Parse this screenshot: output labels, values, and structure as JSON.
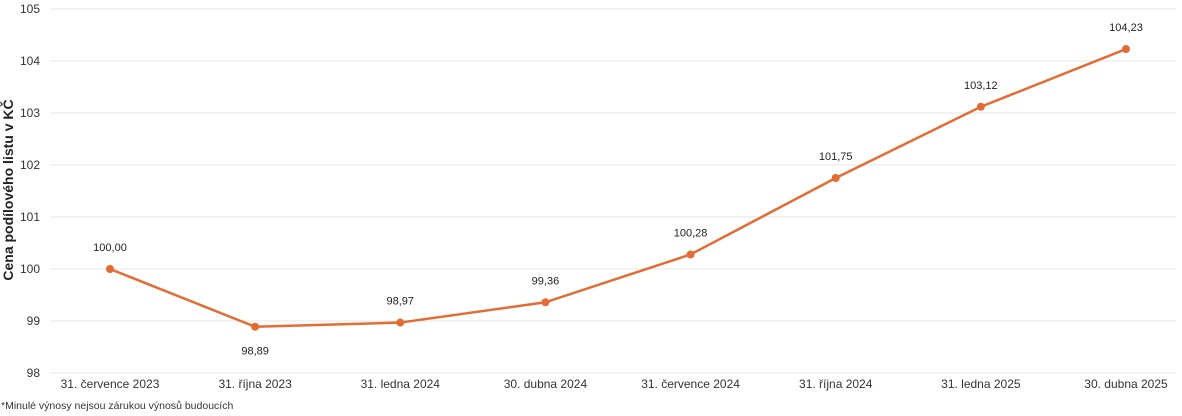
{
  "chart_data": {
    "type": "line",
    "ylabel": "Cena podílového listu v KČ",
    "xlabel": "",
    "title": "",
    "categories": [
      "31. července 2023",
      "31. října 2023",
      "31. ledna 2024",
      "30. dubna 2024",
      "31. července 2024",
      "31. října 2024",
      "31. ledna 2025",
      "30. dubna 2025"
    ],
    "values": [
      100.0,
      98.89,
      98.97,
      99.36,
      100.28,
      101.75,
      103.12,
      104.23
    ],
    "data_labels": [
      "100,00",
      "98,89",
      "98,97",
      "99,36",
      "100,28",
      "101,75",
      "103,12",
      "104,23"
    ],
    "y_ticks": [
      98,
      99,
      100,
      101,
      102,
      103,
      104,
      105
    ],
    "ylim": [
      98,
      105
    ],
    "grid": true,
    "legend": "none",
    "line_color": "#e36c34"
  },
  "footnote": "*Minulé výnosy nejsou zárukou výnosů budoucích"
}
